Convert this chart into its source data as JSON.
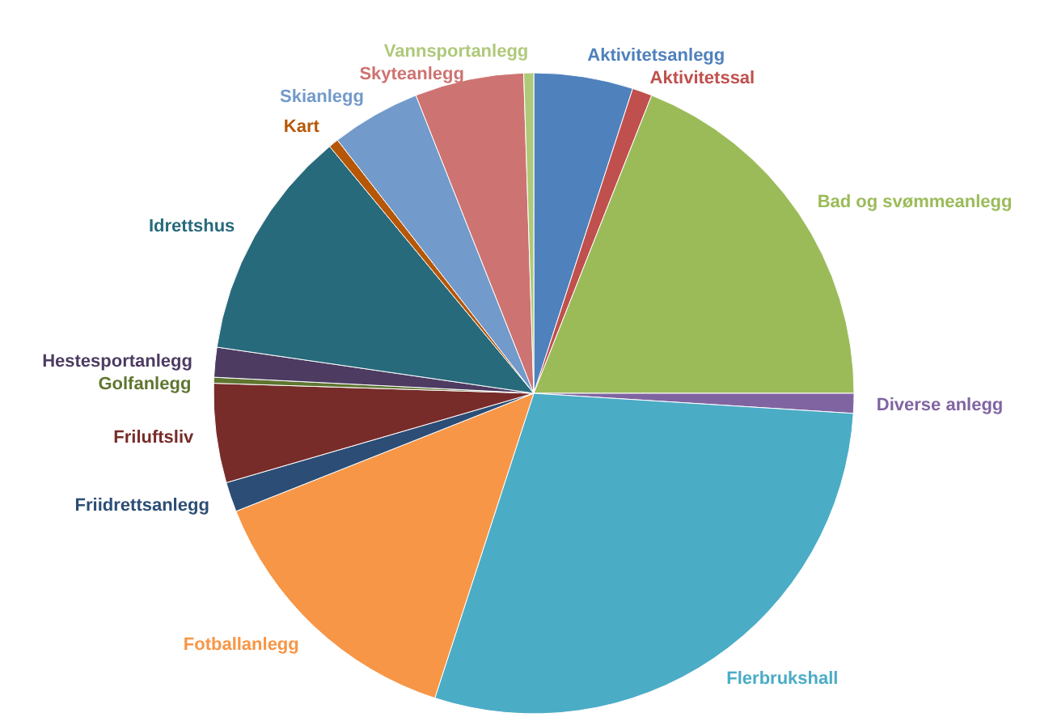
{
  "chart_data": {
    "type": "pie",
    "categories": [
      "Aktivitetsanlegg",
      "Aktivitetssal",
      "Bad og svømmeanlegg",
      "Diverse anlegg",
      "Flerbrukshall",
      "Fotballanlegg",
      "Friidrettsanlegg",
      "Friluftsliv",
      "Golfanlegg",
      "Hestesportanlegg",
      "Idrettshus",
      "Kart",
      "Skianlegg",
      "Skyteanlegg",
      "Vannsportanlegg"
    ],
    "values": [
      5,
      1,
      19,
      1,
      29,
      14,
      1.5,
      5,
      0.3,
      1.5,
      11.7,
      0.5,
      4.5,
      5.5,
      0.5
    ],
    "colors": [
      "#4f81bd",
      "#c0504d",
      "#9bbb59",
      "#8064a2",
      "#4bacc6",
      "#f79646",
      "#2c4d75",
      "#772c2a",
      "#5f7530",
      "#4d3b62",
      "#276a7c",
      "#b65708",
      "#729aca",
      "#cd7371",
      "#afc97a"
    ]
  }
}
